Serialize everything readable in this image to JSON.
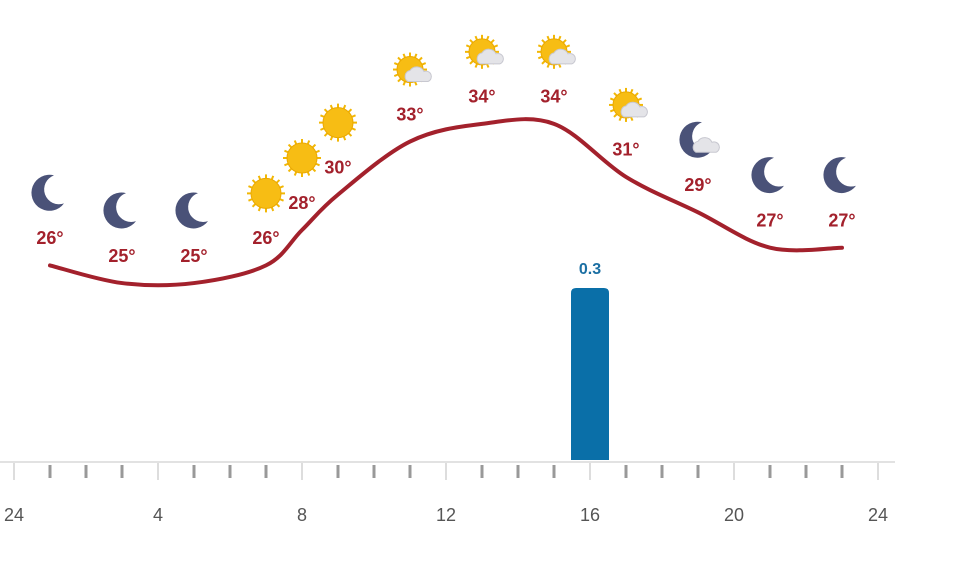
{
  "chart_data": [
    {
      "type": "line",
      "x": [
        1,
        3,
        5,
        7,
        8,
        9,
        11,
        13,
        15,
        17,
        19,
        21,
        23
      ],
      "values": [
        26,
        25,
        25,
        26,
        28,
        30,
        33,
        34,
        34,
        31,
        29,
        27,
        27
      ],
      "value_labels": [
        "26°",
        "25°",
        "25°",
        "26°",
        "28°",
        "30°",
        "33°",
        "34°",
        "34°",
        "31°",
        "29°",
        "27°",
        "27°"
      ],
      "conditions": [
        "moon",
        "moon",
        "moon",
        "sun",
        "sun",
        "sun",
        "sun-cloud",
        "sun-cloud",
        "sun-cloud",
        "sun-cloud",
        "moon-cloud",
        "moon",
        "moon"
      ],
      "color": "#a3212c",
      "xlim": [
        0,
        24
      ],
      "xticks": [
        {
          "value": 0,
          "label": "24"
        },
        4,
        8,
        12,
        16,
        20,
        24
      ],
      "xminorticks": [
        1,
        2,
        3,
        5,
        6,
        7,
        9,
        10,
        11,
        13,
        14,
        15,
        17,
        18,
        19,
        21,
        22,
        23
      ],
      "ylim": [
        15,
        41
      ]
    },
    {
      "type": "bar",
      "x": [
        16
      ],
      "values": [
        0.3
      ],
      "color": "#0a6fa8",
      "ylim": [
        0,
        0.3
      ]
    }
  ]
}
